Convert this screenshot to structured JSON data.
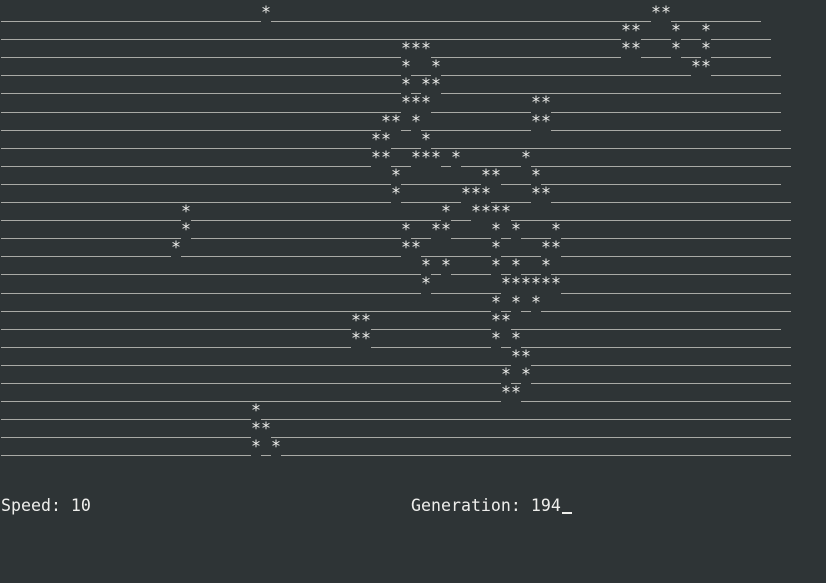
{
  "window": {
    "background": "#2e3436",
    "foreground": "#eeeeec",
    "dead_cell_line_color": "#a9aaa6"
  },
  "grid": {
    "alive_char": "*",
    "rows": [
      "..........................*......................................**.........",
      "..............................................................**...*..*......",
      "........................................***...................**...*..*......",
      "........................................*..*.........................**.......",
      "........................................*.**..................................",
      "........................................***..........**.......................",
      "......................................**.*...........**.......................",
      ".....................................**...*....................................",
      ".....................................**..***.*......*..........................",
      ".......................................*........**...*........................",
      ".......................................*......***....**........................",
      "..................*.........................*..****............................",
      "..................*.....................*..**....*.*...*.......................",
      ".................*......................**.......*....**.......................",
      "..........................................*.*....*.*..*........................",
      "..........................................*.......******.......................",
      ".................................................*.*.*.........................",
      "...................................**............**...........................",
      "...................................**............*.*...........................",
      "...................................................**..........................",
      "..................................................*.*..........................",
      "..................................................**...........................",
      ".........................*.....................................................",
      ".........................**....................................................",
      ".........................*.*..................................................."
    ]
  },
  "status": {
    "speed_label": "Speed: 10",
    "generation_label": "Generation: 194"
  }
}
